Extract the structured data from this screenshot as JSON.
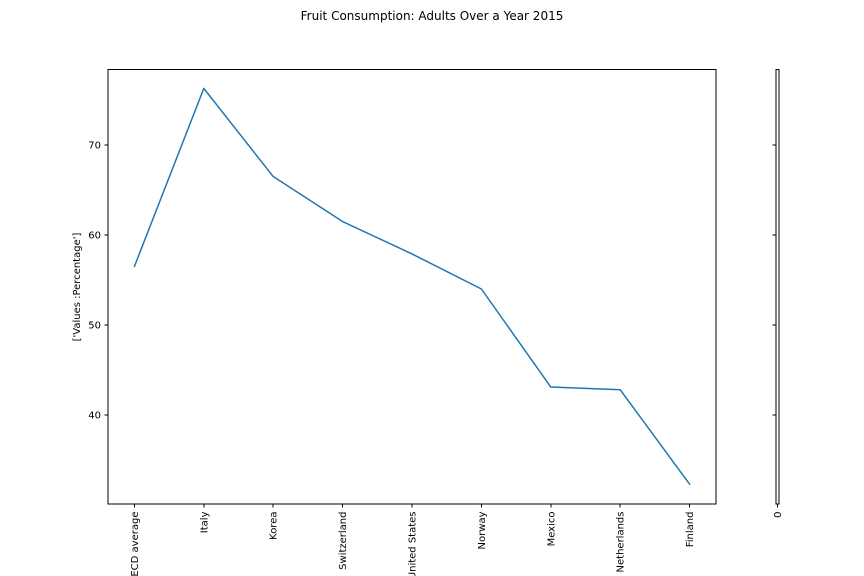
{
  "chart_data": {
    "type": "line",
    "title": "Fruit Consumption: Adults Over a Year 2015",
    "xlabel": "",
    "ylabel": "['Values :Percentage']",
    "categories": [
      "OECD average",
      "Italy",
      "Korea",
      "Switzerland",
      "United States",
      "Norway",
      "Mexico",
      "Netherlands",
      "Finland"
    ],
    "values": [
      56.5,
      76.3,
      66.5,
      61.5,
      57.9,
      54.0,
      43.1,
      42.8,
      32.3
    ],
    "yticks": [
      40,
      50,
      60,
      70
    ],
    "ylim": [
      30.1,
      78.4
    ],
    "grid": false,
    "legend": null,
    "line_color": "#1f77b4",
    "axis_color": "#000000",
    "background_color": "#ffffff",
    "x_tick_label_rotation_deg": 90,
    "secondary_axis": {
      "xtick_label": "0",
      "ytick_count": 4
    }
  }
}
